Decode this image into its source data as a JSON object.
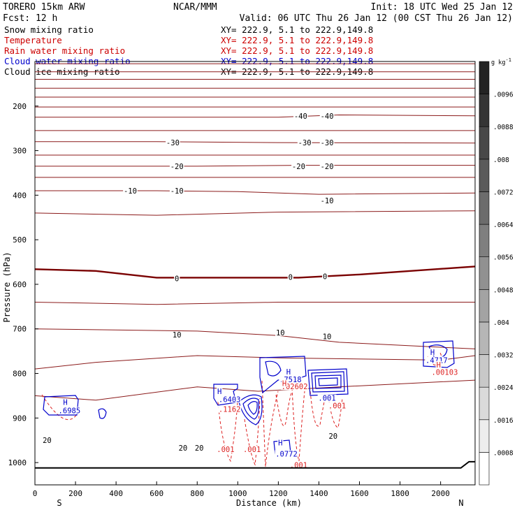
{
  "header": {
    "model": "TORERO  15km ARW",
    "center": "NCAR/MMM",
    "init": "Init: 18 UTC Wed 25 Jan 12",
    "fcst": "Fcst:   12 h",
    "valid": "Valid: 06 UTC Thu 26 Jan 12 (00 CST Thu 26 Jan 12)"
  },
  "fields": [
    {
      "name": "Snow mixing ratio",
      "xy": "XY= 222.9,  5.1 to 222.9,149.8",
      "color": "#000000"
    },
    {
      "name": "Temperature",
      "xy": "XY= 222.9,  5.1 to 222.9,149.8",
      "color": "#cc0000"
    },
    {
      "name": "Rain water mixing ratio",
      "xy": "XY= 222.9,  5.1 to 222.9,149.8",
      "color": "#cc0000"
    },
    {
      "name": "Cloud water mixing ratio",
      "xy": "XY= 222.9,  5.1 to 222.9,149.8",
      "color": "#0000cc"
    },
    {
      "name": "Cloud ice mixing ratio",
      "xy": "XY= 222.9,  5.1 to 222.9,149.8",
      "color": "#000000"
    }
  ],
  "chart_data": {
    "type": "cross-section contour",
    "xlabel": "Distance (km)",
    "ylabel": "Pressure (hPa)",
    "xlim": [
      0,
      2170
    ],
    "ylim": [
      1050,
      100
    ],
    "x_ticks": [
      0,
      200,
      400,
      600,
      800,
      1000,
      1200,
      1400,
      1600,
      1800,
      2000
    ],
    "y_ticks": [
      200,
      300,
      400,
      500,
      600,
      700,
      800,
      900,
      1000
    ],
    "end_labels": {
      "left": "S",
      "right": "N"
    },
    "colorbar": {
      "unit": "g kg",
      "unit_exp": "-1",
      "levels": [
        ".0008",
        ".0016",
        ".0024",
        ".0032",
        ".004",
        ".0048",
        ".0056",
        ".0064",
        ".0072",
        ".008",
        ".0088",
        ".0096"
      ]
    },
    "temperature_contours": [
      {
        "level": -70,
        "points": [
          [
            0,
            105
          ],
          [
            2170,
            105
          ]
        ]
      },
      {
        "level": -65,
        "points": [
          [
            0,
            123
          ],
          [
            2170,
            123
          ]
        ]
      },
      {
        "level": -60,
        "points": [
          [
            0,
            140
          ],
          [
            2170,
            140
          ]
        ]
      },
      {
        "level": -55,
        "points": [
          [
            0,
            160
          ],
          [
            2170,
            160
          ]
        ]
      },
      {
        "level": -50,
        "points": [
          [
            0,
            180
          ],
          [
            2170,
            180
          ]
        ]
      },
      {
        "level": -45,
        "points": [
          [
            0,
            202
          ],
          [
            2170,
            202
          ]
        ]
      },
      {
        "level": -40,
        "points": [
          [
            0,
            225
          ],
          [
            1200,
            225
          ],
          [
            1500,
            220
          ],
          [
            2170,
            222
          ]
        ]
      },
      {
        "level": -35,
        "points": [
          [
            0,
            255
          ],
          [
            2170,
            255
          ]
        ]
      },
      {
        "level": -30,
        "points": [
          [
            0,
            280
          ],
          [
            600,
            280
          ],
          [
            1200,
            282
          ],
          [
            2170,
            283
          ]
        ]
      },
      {
        "level": -25,
        "points": [
          [
            0,
            310
          ],
          [
            2170,
            310
          ]
        ]
      },
      {
        "level": -20,
        "points": [
          [
            0,
            335
          ],
          [
            800,
            335
          ],
          [
            1300,
            333
          ],
          [
            2170,
            333
          ]
        ]
      },
      {
        "level": -15,
        "points": [
          [
            0,
            360
          ],
          [
            2170,
            360
          ]
        ]
      },
      {
        "level": -10,
        "points": [
          [
            0,
            390
          ],
          [
            600,
            390
          ],
          [
            1000,
            392
          ],
          [
            1400,
            398
          ],
          [
            2170,
            395
          ]
        ]
      },
      {
        "level": -5,
        "points": [
          [
            0,
            440
          ],
          [
            600,
            445
          ],
          [
            1200,
            438
          ],
          [
            2170,
            435
          ]
        ]
      },
      {
        "level": 0,
        "points": [
          [
            0,
            566
          ],
          [
            300,
            570
          ],
          [
            600,
            585
          ],
          [
            900,
            585
          ],
          [
            1300,
            585
          ],
          [
            1600,
            578
          ],
          [
            2170,
            560
          ]
        ]
      },
      {
        "level": 5,
        "points": [
          [
            0,
            640
          ],
          [
            600,
            645
          ],
          [
            1200,
            640
          ],
          [
            2170,
            640
          ]
        ]
      },
      {
        "level": 10,
        "points": [
          [
            0,
            700
          ],
          [
            800,
            705
          ],
          [
            1200,
            715
          ],
          [
            1500,
            730
          ],
          [
            2170,
            745
          ]
        ]
      },
      {
        "level": 15,
        "points": [
          [
            0,
            790
          ],
          [
            300,
            775
          ],
          [
            800,
            760
          ],
          [
            1200,
            765
          ],
          [
            2000,
            770
          ],
          [
            2170,
            760
          ]
        ]
      },
      {
        "level": 20,
        "points": [
          [
            0,
            850
          ],
          [
            300,
            860
          ],
          [
            800,
            830
          ],
          [
            1100,
            840
          ],
          [
            1500,
            830
          ],
          [
            2170,
            815
          ]
        ]
      }
    ],
    "temperature_labels": [
      {
        "text": "-40",
        "x": 1310,
        "p": 222
      },
      {
        "text": "-40",
        "x": 1440,
        "p": 222
      },
      {
        "text": "-30",
        "x": 680,
        "p": 282
      },
      {
        "text": "-30",
        "x": 1330,
        "p": 282
      },
      {
        "text": "-30",
        "x": 1440,
        "p": 282
      },
      {
        "text": "-20",
        "x": 700,
        "p": 335
      },
      {
        "text": "-20",
        "x": 1300,
        "p": 335
      },
      {
        "text": "-20",
        "x": 1440,
        "p": 335
      },
      {
        "text": "-10",
        "x": 470,
        "p": 390
      },
      {
        "text": "-10",
        "x": 700,
        "p": 390
      },
      {
        "text": "-10",
        "x": 1440,
        "p": 412
      },
      {
        "text": "0",
        "x": 700,
        "p": 587
      },
      {
        "text": "0",
        "x": 1260,
        "p": 584
      },
      {
        "text": "0",
        "x": 1430,
        "p": 582
      },
      {
        "text": "10",
        "x": 700,
        "p": 713
      },
      {
        "text": "10",
        "x": 1210,
        "p": 708
      },
      {
        "text": "10",
        "x": 1440,
        "p": 717
      },
      {
        "text": "20",
        "x": 60,
        "p": 950
      },
      {
        "text": "20",
        "x": 730,
        "p": 967
      },
      {
        "text": "20",
        "x": 810,
        "p": 967
      },
      {
        "text": "20",
        "x": 1470,
        "p": 940
      }
    ],
    "cloud_water_labels": [
      {
        "text": "H",
        "x": 150,
        "p": 864
      },
      {
        "text": ".6985",
        "x": 170,
        "p": 883
      },
      {
        "text": "H",
        "x": 910,
        "p": 840
      },
      {
        "text": ".6403",
        "x": 960,
        "p": 858
      },
      {
        "text": "H",
        "x": 1250,
        "p": 796
      },
      {
        "text": ".7518",
        "x": 1260,
        "p": 813
      },
      {
        "text": ".001",
        "x": 1440,
        "p": 855
      },
      {
        "text": "H",
        "x": 1210,
        "p": 955
      },
      {
        "text": ".0772",
        "x": 1240,
        "p": 980
      },
      {
        "text": "H",
        "x": 1960,
        "p": 752
      },
      {
        "text": ".4717",
        "x": 1980,
        "p": 770
      }
    ],
    "rain_labels": [
      {
        "text": ".1162",
        "x": 960,
        "p": 880
      },
      {
        "text": ".02602",
        "x": 1280,
        "p": 829
      },
      {
        "text": "H",
        "x": 1230,
        "p": 822
      },
      {
        "text": ".001",
        "x": 1490,
        "p": 872
      },
      {
        "text": ".001",
        "x": 940,
        "p": 970
      },
      {
        "text": ".001",
        "x": 1070,
        "p": 970
      },
      {
        "text": ".001",
        "x": 1300,
        "p": 1005
      },
      {
        "text": "H",
        "x": 1990,
        "p": 780
      },
      {
        "text": ".00103",
        "x": 2020,
        "p": 797
      }
    ]
  }
}
